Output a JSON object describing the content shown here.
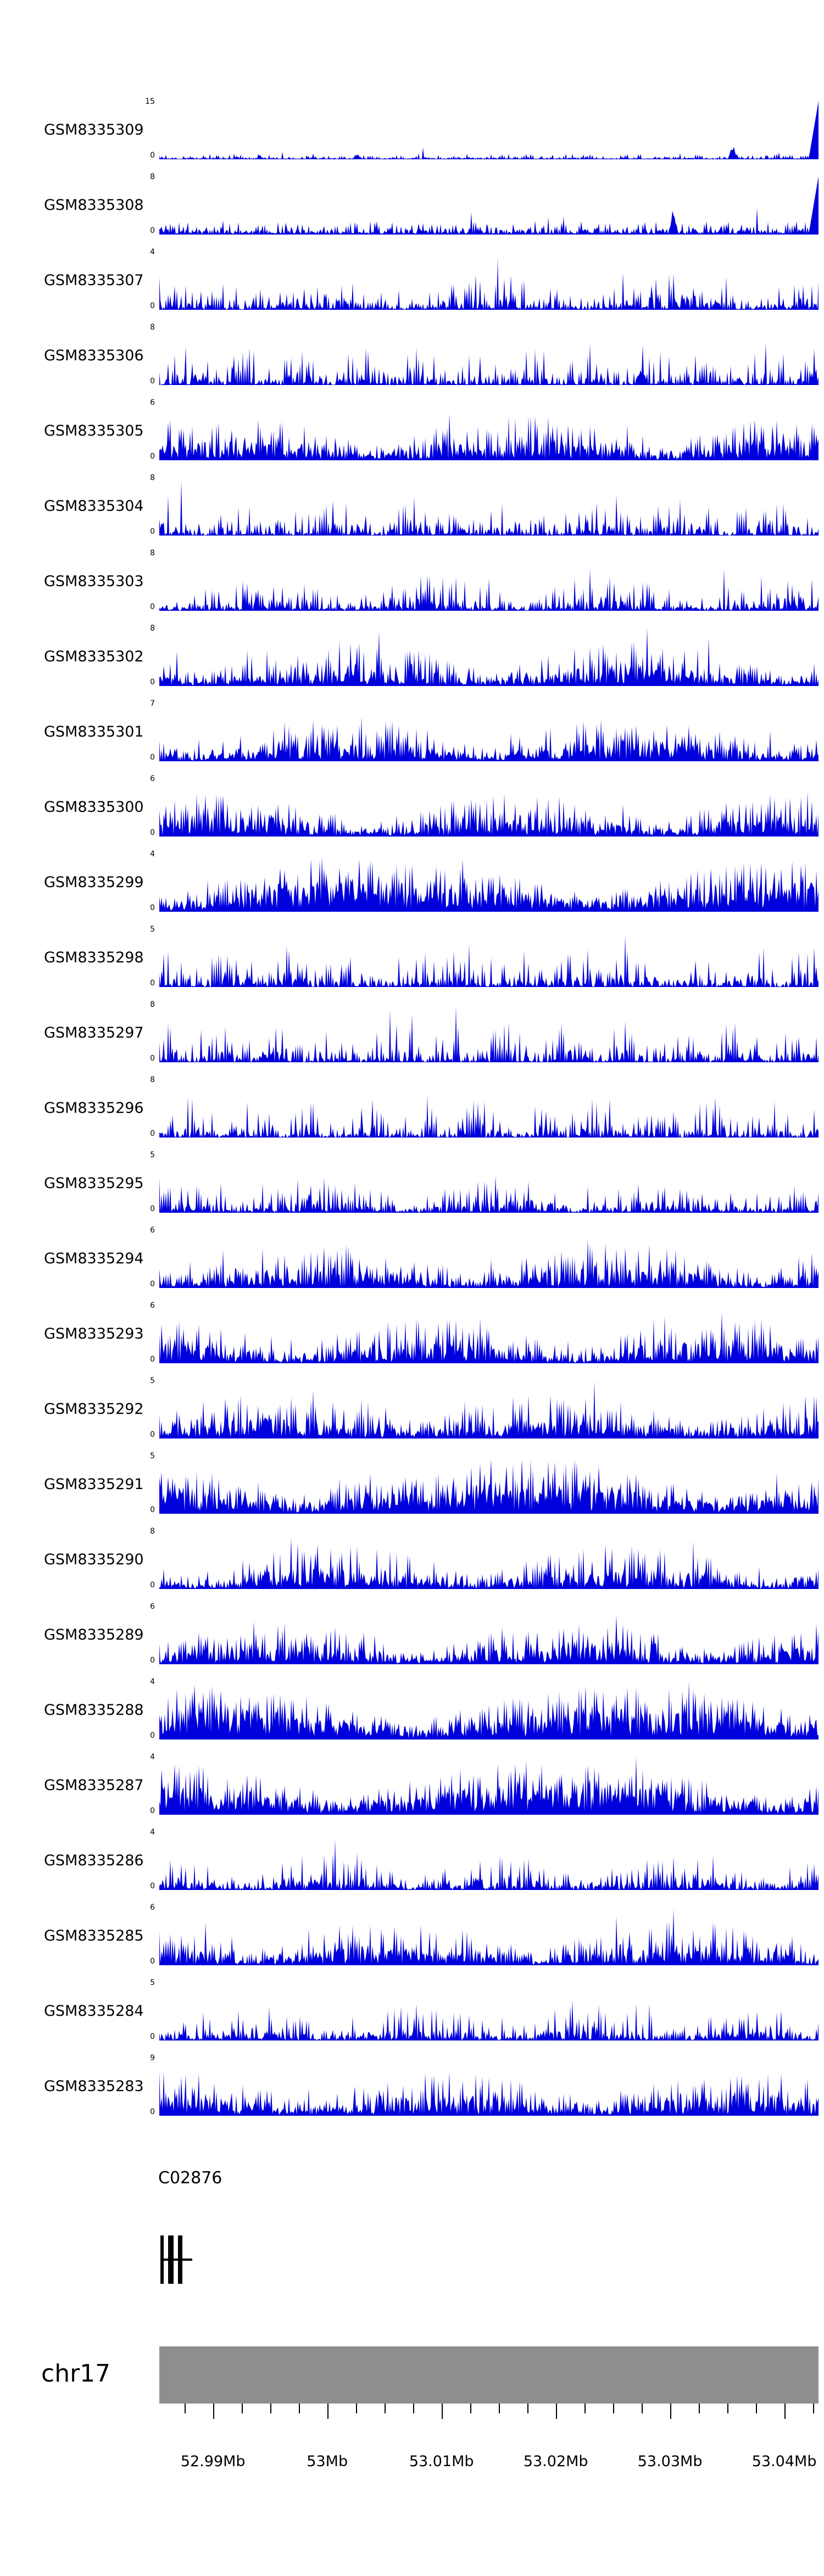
{
  "figure": {
    "signal_color": "#0000dd",
    "text_color": "#000000",
    "y_min_label": "0"
  },
  "chart_data": {
    "type": "area",
    "description": "Genome browser coverage tracks, dense blue signal per sample",
    "x_axis": {
      "unit": "Mb",
      "range": [
        52.9853,
        53.043
      ],
      "minor_tick_start": 52.9875,
      "minor_tick_step": 0.0025,
      "minor_tick_count": 23,
      "ticks": [
        {
          "value": 52.99,
          "label": "52.99Mb"
        },
        {
          "value": 53.0,
          "label": "53Mb"
        },
        {
          "value": 53.01,
          "label": "53.01Mb"
        },
        {
          "value": 53.02,
          "label": "53.02Mb"
        },
        {
          "value": 53.03,
          "label": "53.03Mb"
        },
        {
          "value": 53.04,
          "label": "53.04Mb"
        }
      ]
    },
    "profiles": {
      "quiet_end": {
        "base": 0.012,
        "amp": 0.09,
        "pow": 2.6,
        "spike_p": 0.012,
        "spike_h": 0.15,
        "valley": 0.35,
        "envf": 0,
        "end_spike": 1
      },
      "low_end": {
        "base": 0.025,
        "amp": 0.22,
        "pow": 2.0,
        "spike_p": 0.03,
        "spike_h": 0.3,
        "valley": 0.4,
        "envf": 0,
        "end_spike": 1
      },
      "mid": {
        "base": 0.03,
        "amp": 0.6,
        "pow": 2.0,
        "spike_p": 0.04,
        "spike_h": 0.35,
        "valley": 0.33,
        "envf": 0.02,
        "end_spike": 0
      },
      "clustered": {
        "base": 0.02,
        "amp": 0.7,
        "pow": 2.3,
        "spike_p": 0.05,
        "spike_h": 0.4,
        "valley": 0.3,
        "envf": 0.06,
        "end_spike": 0
      },
      "clustered2": {
        "base": 0.02,
        "amp": 0.7,
        "pow": 2.3,
        "spike_p": 0.05,
        "spike_h": 0.4,
        "valley": 0.3,
        "envf": 0.04,
        "end_spike": 0
      },
      "dense": {
        "base": 0.06,
        "amp": 0.72,
        "pow": 1.4,
        "spike_p": 0.05,
        "spike_h": 0.3,
        "valley": 0.45,
        "envf": 0.012,
        "end_spike": 0
      },
      "vdense": {
        "base": 0.1,
        "amp": 0.85,
        "pow": 1.05,
        "spike_p": 0.05,
        "spike_h": 0.2,
        "valley": 0.55,
        "envf": 0.008,
        "end_spike": 0
      }
    },
    "tracks": [
      {
        "label": "GSM8335309",
        "ymax": "15",
        "profile": "quiet_end",
        "seed": 101,
        "bumps": [
          [
            0.87,
            0.3
          ],
          [
            0.3,
            0.12
          ]
        ]
      },
      {
        "label": "GSM8335308",
        "ymax": "8",
        "profile": "low_end",
        "seed": 102,
        "bumps": [
          [
            0.78,
            0.55
          ]
        ]
      },
      {
        "label": "GSM8335307",
        "ymax": "4",
        "profile": "mid",
        "seed": 103
      },
      {
        "label": "GSM8335306",
        "ymax": "8",
        "profile": "clustered",
        "seed": 104
      },
      {
        "label": "GSM8335305",
        "ymax": "6",
        "profile": "dense",
        "seed": 105
      },
      {
        "label": "GSM8335304",
        "ymax": "8",
        "profile": "clustered2",
        "seed": 106
      },
      {
        "label": "GSM8335303",
        "ymax": "8",
        "profile": "mid",
        "seed": 107
      },
      {
        "label": "GSM8335302",
        "ymax": "8",
        "profile": "dense",
        "seed": 108
      },
      {
        "label": "GSM8335301",
        "ymax": "7",
        "profile": "dense",
        "seed": 109
      },
      {
        "label": "GSM8335300",
        "ymax": "6",
        "profile": "dense",
        "seed": 110
      },
      {
        "label": "GSM8335299",
        "ymax": "4",
        "profile": "vdense",
        "seed": 111
      },
      {
        "label": "GSM8335298",
        "ymax": "5",
        "profile": "clustered",
        "seed": 112
      },
      {
        "label": "GSM8335297",
        "ymax": "8",
        "profile": "clustered",
        "seed": 113
      },
      {
        "label": "GSM8335296",
        "ymax": "8",
        "profile": "clustered",
        "seed": 114
      },
      {
        "label": "GSM8335295",
        "ymax": "5",
        "profile": "mid",
        "seed": 115
      },
      {
        "label": "GSM8335294",
        "ymax": "6",
        "profile": "dense",
        "seed": 116
      },
      {
        "label": "GSM8335293",
        "ymax": "6",
        "profile": "dense",
        "seed": 117
      },
      {
        "label": "GSM8335292",
        "ymax": "5",
        "profile": "dense",
        "seed": 118
      },
      {
        "label": "GSM8335291",
        "ymax": "5",
        "profile": "vdense",
        "seed": 119
      },
      {
        "label": "GSM8335290",
        "ymax": "8",
        "profile": "dense",
        "seed": 120
      },
      {
        "label": "GSM8335289",
        "ymax": "6",
        "profile": "dense",
        "seed": 121
      },
      {
        "label": "GSM8335288",
        "ymax": "4",
        "profile": "vdense",
        "seed": 122
      },
      {
        "label": "GSM8335287",
        "ymax": "4",
        "profile": "vdense",
        "seed": 123
      },
      {
        "label": "GSM8335286",
        "ymax": "4",
        "profile": "mid",
        "seed": 124
      },
      {
        "label": "GSM8335285",
        "ymax": "6",
        "profile": "dense",
        "seed": 125
      },
      {
        "label": "GSM8335284",
        "ymax": "5",
        "profile": "mid",
        "seed": 126
      },
      {
        "label": "GSM8335283",
        "ymax": "9",
        "profile": "dense",
        "seed": 127
      }
    ],
    "gene_track": {
      "label": "C02876",
      "exon_offsets": [
        0,
        14,
        32
      ],
      "exon_widths": [
        6,
        10,
        8
      ]
    },
    "chromosome": {
      "label": "chr17",
      "bar_color": "#8e8e8e"
    }
  }
}
